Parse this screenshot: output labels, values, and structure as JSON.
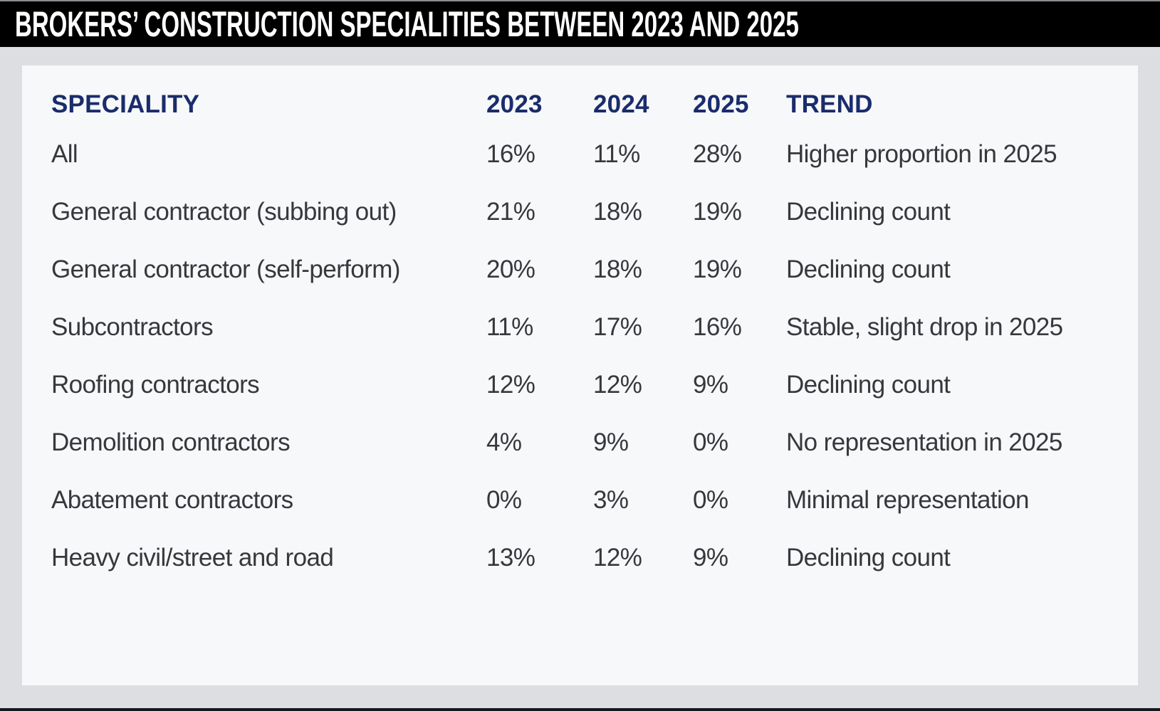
{
  "title": "BROKERS’ CONSTRUCTION SPECIALITIES BETWEEN 2023 AND 2025",
  "colors": {
    "title_bar_bg": "#000000",
    "title_text": "#ffffff",
    "page_bg": "#dcdee1",
    "panel_bg": "#f6f8fa",
    "header_text": "#1a2c6b",
    "body_text": "#37373c",
    "bottom_bar": "#17181d"
  },
  "table": {
    "headers": {
      "speciality": "SPECIALITY",
      "y2023": "2023",
      "y2024": "2024",
      "y2025": "2025",
      "trend": "TREND"
    },
    "rows": [
      {
        "speciality": "All",
        "y2023": "16%",
        "y2024": "11%",
        "y2025": "28%",
        "trend": "Higher proportion in 2025"
      },
      {
        "speciality": "General contractor (subbing out)",
        "y2023": "21%",
        "y2024": "18%",
        "y2025": "19%",
        "trend": "Declining count"
      },
      {
        "speciality": "General contractor (self-perform)",
        "y2023": "20%",
        "y2024": "18%",
        "y2025": "19%",
        "trend": "Declining count"
      },
      {
        "speciality": "Subcontractors",
        "y2023": "11%",
        "y2024": "17%",
        "y2025": "16%",
        "trend": "Stable, slight drop in 2025"
      },
      {
        "speciality": "Roofing contractors",
        "y2023": "12%",
        "y2024": "12%",
        "y2025": "9%",
        "trend": "Declining count"
      },
      {
        "speciality": "Demolition contractors",
        "y2023": "4%",
        "y2024": "9%",
        "y2025": "0%",
        "trend": "No representation in 2025"
      },
      {
        "speciality": "Abatement contractors",
        "y2023": "0%",
        "y2024": "3%",
        "y2025": "0%",
        "trend": "Minimal representation"
      },
      {
        "speciality": "Heavy civil/street and road",
        "y2023": "13%",
        "y2024": "12%",
        "y2025": "9%",
        "trend": "Declining count"
      }
    ]
  },
  "chart_data": {
    "type": "table",
    "title": "Brokers’ construction specialities between 2023 and 2025",
    "categories": [
      "All",
      "General contractor (subbing out)",
      "General contractor (self-perform)",
      "Subcontractors",
      "Roofing contractors",
      "Demolition contractors",
      "Abatement contractors",
      "Heavy civil/street and road"
    ],
    "series": [
      {
        "name": "2023",
        "values": [
          16,
          21,
          20,
          11,
          12,
          4,
          0,
          13
        ],
        "unit": "%"
      },
      {
        "name": "2024",
        "values": [
          11,
          18,
          18,
          17,
          12,
          9,
          3,
          12
        ],
        "unit": "%"
      },
      {
        "name": "2025",
        "values": [
          28,
          19,
          19,
          16,
          9,
          0,
          0,
          9
        ],
        "unit": "%"
      }
    ],
    "annotations": {
      "trend": [
        "Higher proportion in 2025",
        "Declining count",
        "Declining count",
        "Stable, slight drop in 2025",
        "Declining count",
        "No representation in 2025",
        "Minimal representation",
        "Declining count"
      ]
    },
    "columns": [
      "SPECIALITY",
      "2023",
      "2024",
      "2025",
      "TREND"
    ]
  }
}
